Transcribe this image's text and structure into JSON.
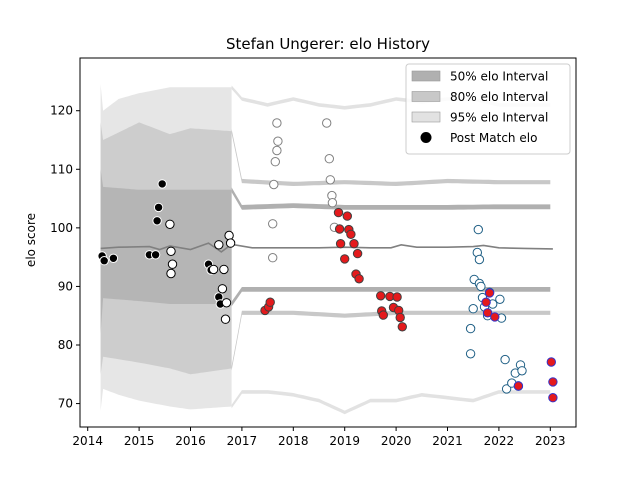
{
  "chart_data": {
    "type": "scatter",
    "title": "Stefan Ungerer: elo History",
    "xlabel": "",
    "ylabel": "elo score",
    "xlim": [
      2013.85,
      2023.5
    ],
    "ylim": [
      66,
      129
    ],
    "x_ticks": [
      2014,
      2015,
      2016,
      2017,
      2018,
      2019,
      2020,
      2021,
      2022,
      2023
    ],
    "x_tick_labels": [
      "2014",
      "2015",
      "2016",
      "2017",
      "2018",
      "2019",
      "2020",
      "2021",
      "2022",
      "2023"
    ],
    "y_ticks": [
      70,
      80,
      90,
      100,
      110,
      120
    ],
    "y_tick_labels": [
      "70",
      "80",
      "90",
      "100",
      "110",
      "120"
    ],
    "legend_position": "top-right",
    "legend": [
      {
        "label": "50% elo Interval",
        "kind": "band",
        "color": "#b0b0b0"
      },
      {
        "label": "80% elo Interval",
        "kind": "band",
        "color": "#c8c8c8"
      },
      {
        "label": "95% elo Interval",
        "kind": "band",
        "color": "#e2e2e2"
      },
      {
        "label": "Post Match elo",
        "kind": "marker",
        "color": "#000000"
      }
    ],
    "mean_line": {
      "color": "#808080",
      "points": [
        [
          2014.25,
          96.5
        ],
        [
          2014.6,
          96.7
        ],
        [
          2015.2,
          96.8
        ],
        [
          2015.4,
          96.3
        ],
        [
          2015.6,
          96.9
        ],
        [
          2016.0,
          96.3
        ],
        [
          2016.35,
          97.4
        ],
        [
          2016.6,
          95.9
        ],
        [
          2016.8,
          97.2
        ],
        [
          2017.2,
          96.6
        ],
        [
          2018.5,
          96.6
        ],
        [
          2019.0,
          96.7
        ],
        [
          2019.5,
          96.6
        ],
        [
          2019.9,
          96.6
        ],
        [
          2020.1,
          97.1
        ],
        [
          2020.4,
          96.7
        ],
        [
          2021.0,
          96.7
        ],
        [
          2021.5,
          96.8
        ],
        [
          2021.7,
          97.0
        ],
        [
          2022.0,
          96.6
        ],
        [
          2022.5,
          96.5
        ],
        [
          2023.05,
          96.4
        ]
      ]
    },
    "bands": [
      {
        "name": "95% elo Interval",
        "color": "#e2e2e2",
        "upper": [
          [
            2014.25,
            124.5
          ],
          [
            2014.3,
            120.0
          ],
          [
            2014.6,
            122.0
          ],
          [
            2015.0,
            123.0
          ],
          [
            2015.6,
            124.0
          ],
          [
            2016.0,
            124.0
          ],
          [
            2016.8,
            124.0
          ],
          [
            2017.0,
            122.0
          ],
          [
            2017.5,
            121.0
          ],
          [
            2018.0,
            122.0
          ],
          [
            2018.5,
            121.0
          ],
          [
            2019.0,
            120.5
          ],
          [
            2019.5,
            121.0
          ],
          [
            2020.0,
            122.0
          ],
          [
            2020.5,
            121.5
          ],
          [
            2021.0,
            122.0
          ],
          [
            2021.5,
            122.0
          ],
          [
            2022.0,
            121.0
          ],
          [
            2022.5,
            121.0
          ],
          [
            2023.05,
            121.0
          ]
        ],
        "lower": [
          [
            2014.25,
            68.8
          ],
          [
            2014.3,
            72.5
          ],
          [
            2014.6,
            71.5
          ],
          [
            2015.0,
            70.5
          ],
          [
            2015.6,
            69.5
          ],
          [
            2016.0,
            69.0
          ],
          [
            2016.8,
            69.5
          ],
          [
            2017.0,
            72.0
          ],
          [
            2017.5,
            72.0
          ],
          [
            2018.0,
            71.5
          ],
          [
            2018.5,
            70.5
          ],
          [
            2019.0,
            68.5
          ],
          [
            2019.5,
            70.5
          ],
          [
            2020.0,
            70.5
          ],
          [
            2020.5,
            71.5
          ],
          [
            2021.0,
            71.0
          ],
          [
            2021.5,
            70.5
          ],
          [
            2022.0,
            72.0
          ],
          [
            2022.5,
            72.0
          ],
          [
            2023.05,
            72.0
          ]
        ]
      },
      {
        "name": "80% elo Interval",
        "color": "#c8c8c8",
        "upper": [
          [
            2014.25,
            118.0
          ],
          [
            2014.3,
            115.0
          ],
          [
            2015.0,
            118.0
          ],
          [
            2015.6,
            116.0
          ],
          [
            2016.0,
            117.0
          ],
          [
            2016.8,
            116.5
          ],
          [
            2017.0,
            108.0
          ],
          [
            2018.0,
            107.5
          ],
          [
            2019.0,
            107.8
          ],
          [
            2020.0,
            107.5
          ],
          [
            2021.0,
            108.0
          ],
          [
            2022.0,
            107.8
          ],
          [
            2023.05,
            107.8
          ]
        ],
        "lower": [
          [
            2014.25,
            75.0
          ],
          [
            2014.3,
            78.0
          ],
          [
            2015.0,
            77.0
          ],
          [
            2015.6,
            76.0
          ],
          [
            2016.0,
            75.0
          ],
          [
            2016.8,
            76.0
          ],
          [
            2017.0,
            85.5
          ],
          [
            2018.0,
            85.5
          ],
          [
            2019.0,
            85.0
          ],
          [
            2020.0,
            85.5
          ],
          [
            2021.0,
            85.5
          ],
          [
            2022.0,
            85.5
          ],
          [
            2023.05,
            85.5
          ]
        ]
      },
      {
        "name": "50% elo Interval",
        "color": "#b0b0b0",
        "upper": [
          [
            2014.25,
            110.0
          ],
          [
            2014.3,
            107.0
          ],
          [
            2015.0,
            106.5
          ],
          [
            2015.6,
            106.5
          ],
          [
            2016.0,
            106.5
          ],
          [
            2016.8,
            106.5
          ],
          [
            2017.0,
            103.5
          ],
          [
            2018.0,
            103.8
          ],
          [
            2019.0,
            103.5
          ],
          [
            2020.0,
            103.5
          ],
          [
            2021.0,
            103.5
          ],
          [
            2022.0,
            103.6
          ],
          [
            2023.05,
            103.6
          ]
        ],
        "lower": [
          [
            2014.25,
            82.0
          ],
          [
            2014.3,
            88.0
          ],
          [
            2015.0,
            87.5
          ],
          [
            2015.6,
            87.0
          ],
          [
            2016.0,
            87.0
          ],
          [
            2016.8,
            87.0
          ],
          [
            2017.0,
            89.5
          ],
          [
            2018.0,
            89.5
          ],
          [
            2019.0,
            89.5
          ],
          [
            2020.0,
            89.5
          ],
          [
            2021.0,
            89.5
          ],
          [
            2022.0,
            89.5
          ],
          [
            2023.05,
            89.5
          ]
        ]
      }
    ],
    "solid_bands_xmax": 2016.8,
    "series": [
      {
        "fill": "#000000",
        "stroke": "#ffffff",
        "points": [
          [
            2014.28,
            95.2
          ],
          [
            2014.32,
            94.4
          ],
          [
            2014.5,
            94.8
          ],
          [
            2015.2,
            95.4
          ],
          [
            2015.32,
            95.4
          ],
          [
            2015.35,
            101.2
          ],
          [
            2015.38,
            103.5
          ],
          [
            2015.45,
            107.5
          ],
          [
            2016.35,
            93.8
          ],
          [
            2016.4,
            92.8
          ],
          [
            2016.55,
            88.2
          ],
          [
            2016.58,
            87.0
          ]
        ]
      },
      {
        "fill": "#ffffff",
        "stroke": "#000000",
        "points": [
          [
            2015.6,
            100.6
          ],
          [
            2015.62,
            96.0
          ],
          [
            2015.65,
            93.8
          ],
          [
            2015.62,
            92.2
          ],
          [
            2016.45,
            92.9
          ],
          [
            2016.55,
            97.1
          ],
          [
            2016.65,
            92.9
          ],
          [
            2016.62,
            89.6
          ],
          [
            2016.7,
            87.2
          ],
          [
            2016.68,
            84.4
          ],
          [
            2016.75,
            98.7
          ],
          [
            2016.78,
            97.4
          ]
        ]
      },
      {
        "fill": "#ffffff",
        "stroke": "#808080",
        "points": [
          [
            2017.6,
            94.9
          ],
          [
            2017.6,
            100.7
          ],
          [
            2017.62,
            107.4
          ],
          [
            2017.65,
            111.3
          ],
          [
            2017.68,
            113.2
          ],
          [
            2017.7,
            114.8
          ],
          [
            2017.68,
            117.9
          ],
          [
            2018.65,
            117.9
          ],
          [
            2018.7,
            111.8
          ],
          [
            2018.72,
            108.2
          ],
          [
            2018.75,
            105.5
          ],
          [
            2018.76,
            104.3
          ],
          [
            2018.8,
            100.1
          ]
        ]
      },
      {
        "fill": "#e41a1c",
        "stroke": "#404040",
        "points": [
          [
            2017.45,
            85.9
          ],
          [
            2017.52,
            86.5
          ],
          [
            2017.55,
            87.3
          ],
          [
            2018.88,
            102.6
          ],
          [
            2018.9,
            99.8
          ],
          [
            2018.92,
            97.3
          ],
          [
            2019.0,
            94.7
          ],
          [
            2019.05,
            102.0
          ],
          [
            2019.08,
            99.7
          ],
          [
            2019.12,
            98.9
          ],
          [
            2019.18,
            97.3
          ],
          [
            2019.25,
            95.6
          ],
          [
            2019.22,
            92.1
          ],
          [
            2019.28,
            91.3
          ],
          [
            2019.7,
            88.4
          ],
          [
            2019.72,
            85.8
          ],
          [
            2019.75,
            85.1
          ],
          [
            2019.88,
            88.3
          ],
          [
            2019.95,
            86.4
          ],
          [
            2020.02,
            88.2
          ],
          [
            2020.05,
            85.9
          ],
          [
            2020.08,
            84.7
          ],
          [
            2020.12,
            83.1
          ]
        ]
      },
      {
        "fill": "#ffffff",
        "stroke": "#1f5f85",
        "points": [
          [
            2021.45,
            82.8
          ],
          [
            2021.45,
            78.5
          ],
          [
            2021.5,
            86.2
          ],
          [
            2021.52,
            91.2
          ],
          [
            2021.58,
            95.8
          ],
          [
            2021.6,
            99.7
          ],
          [
            2021.62,
            94.6
          ],
          [
            2021.62,
            90.5
          ],
          [
            2021.65,
            90.0
          ],
          [
            2021.68,
            88.1
          ],
          [
            2021.72,
            86.5
          ],
          [
            2021.78,
            85.0
          ],
          [
            2021.82,
            89.0
          ],
          [
            2021.88,
            87.0
          ],
          [
            2022.02,
            87.8
          ],
          [
            2022.05,
            84.6
          ],
          [
            2022.12,
            77.5
          ],
          [
            2022.15,
            72.5
          ],
          [
            2022.25,
            73.5
          ],
          [
            2022.32,
            75.2
          ],
          [
            2022.38,
            73.0
          ],
          [
            2022.42,
            76.6
          ],
          [
            2022.45,
            75.6
          ]
        ]
      },
      {
        "fill": "#e41a1c",
        "stroke": "#3333cc",
        "points": [
          [
            2021.75,
            87.3
          ],
          [
            2021.78,
            85.5
          ],
          [
            2021.82,
            88.9
          ],
          [
            2021.92,
            84.8
          ],
          [
            2022.38,
            73.0
          ],
          [
            2023.02,
            77.1
          ],
          [
            2023.05,
            73.7
          ],
          [
            2023.05,
            71.0
          ]
        ]
      }
    ]
  }
}
